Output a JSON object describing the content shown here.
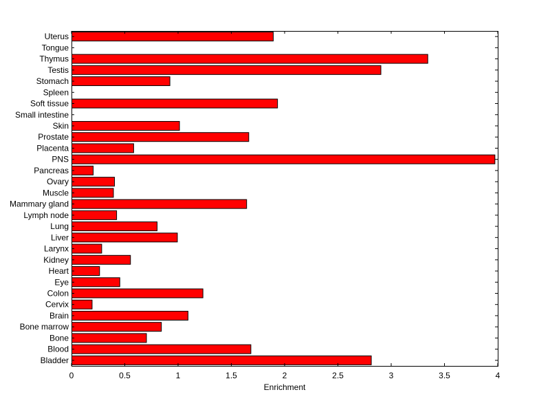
{
  "chart_data": {
    "type": "bar",
    "orientation": "horizontal",
    "title": "",
    "xlabel": "Enrichment",
    "ylabel": "",
    "xlim": [
      0,
      4
    ],
    "xticks": [
      "0",
      "0.5",
      "1",
      "1.5",
      "2",
      "2.5",
      "3",
      "3.5",
      "4"
    ],
    "grid": false,
    "bar_color": "#ff0000",
    "bar_edge_color": "#000000",
    "categories": [
      "Uterus",
      "Tongue",
      "Thymus",
      "Testis",
      "Stomach",
      "Spleen",
      "Soft tissue",
      "Small intestine",
      "Skin",
      "Prostate",
      "Placenta",
      "PNS",
      "Pancreas",
      "Ovary",
      "Muscle",
      "Mammary gland",
      "Lymph node",
      "Lung",
      "Liver",
      "Larynx",
      "Kidney",
      "Heart",
      "Eye",
      "Colon",
      "Cervix",
      "Brain",
      "Bone marrow",
      "Bone",
      "Blood",
      "Bladder"
    ],
    "values": [
      1.89,
      0,
      3.34,
      2.9,
      0.92,
      0,
      1.93,
      0,
      1.01,
      1.66,
      0.58,
      3.97,
      0.2,
      0.4,
      0.39,
      1.64,
      0.42,
      0.8,
      0.99,
      0.28,
      0.55,
      0.26,
      0.45,
      1.23,
      0.19,
      1.09,
      0.84,
      0.7,
      1.68,
      2.81
    ]
  }
}
